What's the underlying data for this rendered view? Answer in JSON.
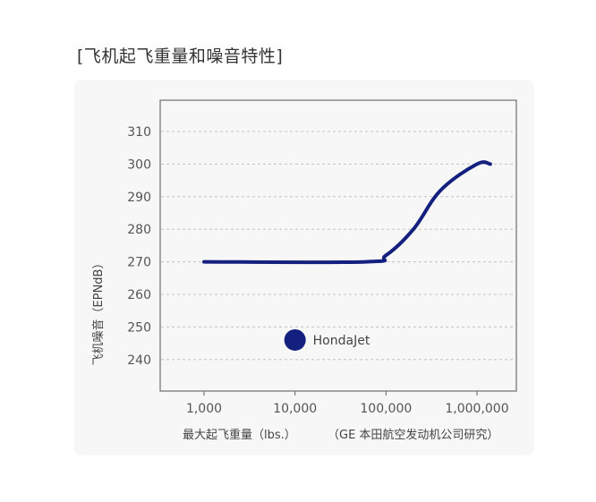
{
  "title": "[飞机起飞重量和噪音特性]",
  "chart_data": {
    "type": "line",
    "xlabel": "最大起飞重量（lbs.）",
    "source": "（GE 本田航空发动机公司研究）",
    "ylabel": "飞机噪音（EPNdB）",
    "x_scale": "log",
    "xlim": [
      1000,
      1000000
    ],
    "ylim": [
      240,
      310
    ],
    "x_ticks": [
      "1,000",
      "10,000",
      "100,000",
      "1,000,000"
    ],
    "y_ticks": [
      "310",
      "300",
      "290",
      "280",
      "270",
      "260",
      "250",
      "240"
    ],
    "grid": "horizontal dashed",
    "series": [
      {
        "x": [
          1000,
          60000,
          100000,
          200000,
          400000,
          1000000,
          1400000
        ],
        "y": [
          270,
          270,
          272,
          280,
          292,
          300,
          300
        ],
        "color": "#14207e"
      }
    ],
    "annotations": [
      {
        "label": "HondaJet",
        "x": 10000,
        "y": 246,
        "color": "#14207e"
      }
    ]
  }
}
